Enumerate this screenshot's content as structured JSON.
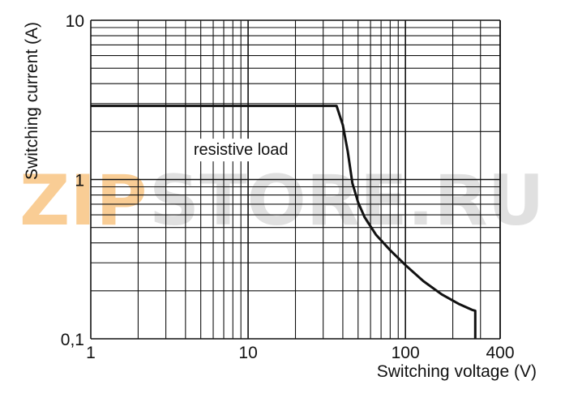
{
  "chart_data": {
    "type": "line",
    "title": "",
    "xlabel": "Switching voltage (V)",
    "ylabel": "Switching current (A)",
    "x_scale": "log",
    "y_scale": "log",
    "xlim": [
      1,
      400
    ],
    "ylim": [
      0.1,
      10
    ],
    "grid": true,
    "x_ticks": [
      {
        "value": 1,
        "label": "1"
      },
      {
        "value": 10,
        "label": "10"
      },
      {
        "value": 100,
        "label": "100"
      },
      {
        "value": 400,
        "label": "400"
      }
    ],
    "y_ticks": [
      {
        "value": 0.1,
        "label": "0,1"
      },
      {
        "value": 1,
        "label": "1"
      },
      {
        "value": 10,
        "label": "10"
      }
    ],
    "annotation": {
      "text": "resistive load",
      "x": 9,
      "y": 1.55
    },
    "watermark": {
      "text_accent": "ZIP",
      "text": "STORE.RU",
      "accent_color": "#f5a640",
      "color": "#c8c8c8"
    },
    "series": [
      {
        "x": [
          1,
          36.5,
          40,
          43,
          46,
          50,
          55,
          65,
          80,
          100,
          130,
          170,
          220,
          265,
          278,
          278
        ],
        "y": [
          2.9,
          2.9,
          2.2,
          1.5,
          0.95,
          0.72,
          0.58,
          0.45,
          0.36,
          0.29,
          0.23,
          0.19,
          0.165,
          0.152,
          0.15,
          0.1
        ]
      }
    ],
    "line_color": "#111111",
    "grid_color": "#111111"
  }
}
